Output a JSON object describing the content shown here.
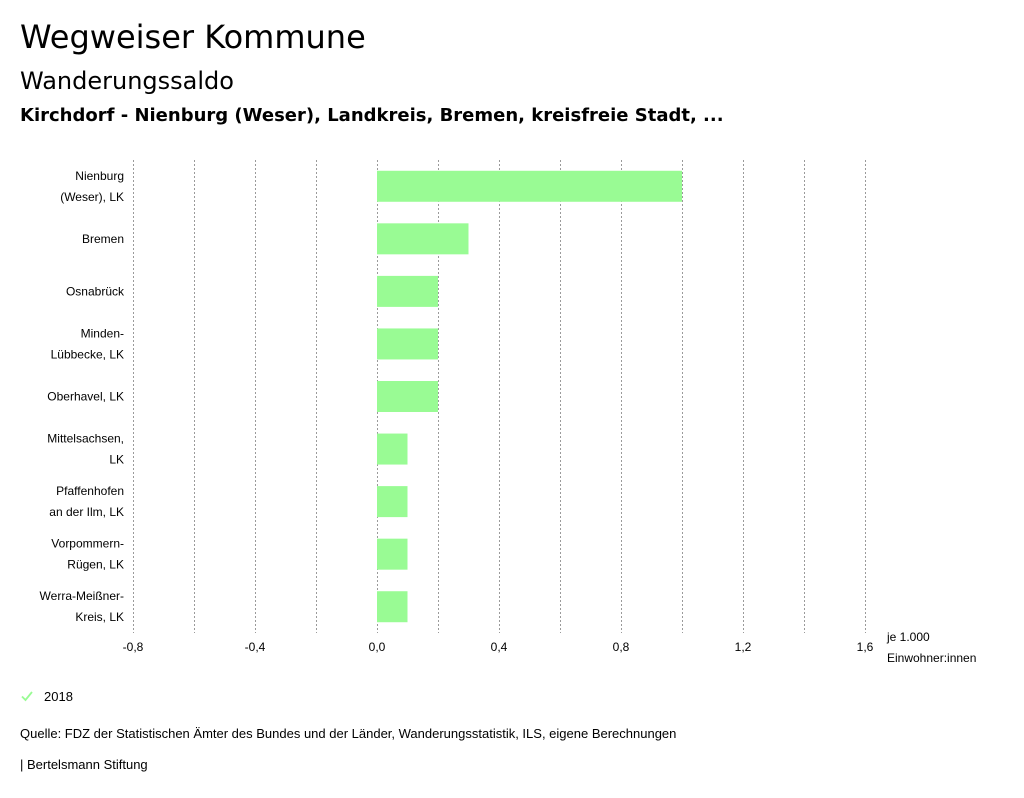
{
  "header": {
    "title": "Wegweiser Kommune",
    "subtitle": "Wanderungssaldo",
    "regions": "Kirchdorf - Nienburg (Weser), Landkreis, Bremen, kreisfreie Stadt, ..."
  },
  "chart_data": {
    "type": "bar",
    "orientation": "horizontal",
    "title": "Wanderungssaldo",
    "categories": [
      [
        "Nienburg",
        "(Weser), LK"
      ],
      [
        "Bremen"
      ],
      [
        "Osnabrück"
      ],
      [
        "Minden-",
        "Lübbecke, LK"
      ],
      [
        "Oberhavel, LK"
      ],
      [
        "Mittelsachsen,",
        "LK"
      ],
      [
        "Pfaffenhofen",
        "an der Ilm, LK"
      ],
      [
        "Vorpommern-",
        "Rügen, LK"
      ],
      [
        "Werra-Meißner-",
        "Kreis, LK"
      ]
    ],
    "series": [
      {
        "name": "2018",
        "values": [
          1.0,
          0.3,
          0.2,
          0.2,
          0.2,
          0.1,
          0.1,
          0.1,
          0.1
        ]
      }
    ],
    "xlim": [
      -0.8,
      1.6
    ],
    "xticks": [
      -0.8,
      -0.4,
      0.0,
      0.4,
      0.8,
      1.2,
      1.6
    ],
    "xtick_labels": [
      "-0,8",
      "-0,4",
      "0,0",
      "0,4",
      "0,8",
      "1,2",
      "1,6"
    ],
    "xlabel": [
      "je 1.000",
      "Einwohner:innen"
    ],
    "grid": true,
    "bar_color": "#99fb94"
  },
  "legend": {
    "label": "2018",
    "icon": "check-icon",
    "color": "#99fb94"
  },
  "footer": {
    "source": "Quelle: FDZ der Statistischen Ämter des Bundes und der Länder, Wanderungsstatistik, ILS, eigene Berechnungen",
    "credit": "| Bertelsmann Stiftung"
  }
}
